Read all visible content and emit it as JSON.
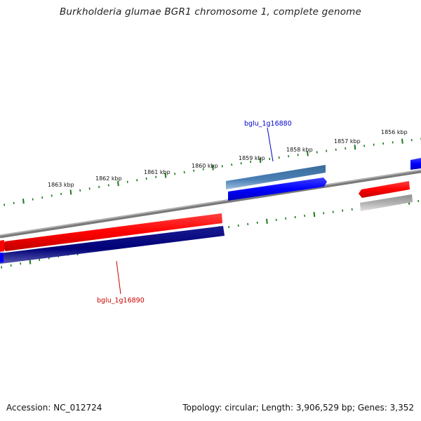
{
  "title": "Burkholderia glumae BGR1 chromosome 1, complete genome",
  "footer": {
    "accession": "Accession: NC_012724",
    "topology": "Topology: circular; Length: 3,906,529 bp; Genes: 3,352"
  },
  "ruler_ticks": [
    "1863 kbp",
    "1862 kbp",
    "1861 kbp",
    "1860 kbp",
    "1859 kbp",
    "1858 kbp",
    "1857 kbp",
    "1856 kbp"
  ],
  "genes": [
    {
      "label": "bglu_1g16880",
      "color": "#0000cc"
    },
    {
      "label": "bglu_1g16890",
      "color": "#cc0000"
    }
  ],
  "colors": {
    "forward_cds": "#0000ff",
    "reverse_cds": "#ff0000",
    "forward_gene": "#4a7fb5",
    "reverse_gene": "#000080",
    "pseudo": "#aaaaaa",
    "backbone": "#808080",
    "tick": "#1a7a1a"
  }
}
